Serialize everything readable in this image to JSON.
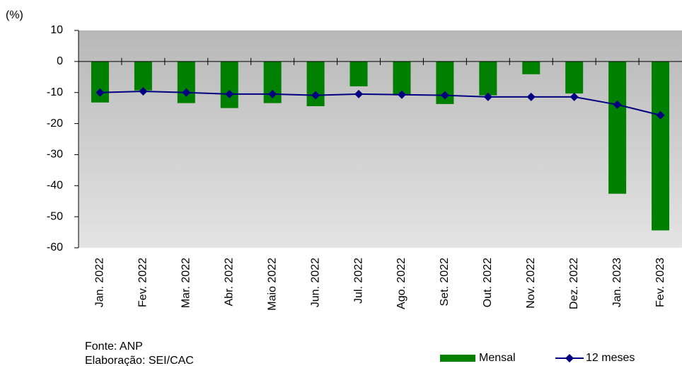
{
  "chart_data": {
    "type": "bar-line",
    "y_unit": "(%)",
    "categories": [
      "Jan. 2022",
      "Fev. 2022",
      "Mar. 2022",
      "Abr. 2022",
      "Maio 2022",
      "Jun. 2022",
      "Jul. 2022",
      "Ago. 2022",
      "Set. 2022",
      "Out. 2022",
      "Nov. 2022",
      "Dez. 2022",
      "Jan. 2023",
      "Fev. 2023"
    ],
    "series": [
      {
        "name": "Mensal",
        "type": "bar",
        "color": "#008000",
        "values": [
          -13.2,
          -9.3,
          -13.4,
          -15.0,
          -13.4,
          -14.4,
          -8.0,
          -10.9,
          -13.7,
          -10.9,
          -4.1,
          -10.3,
          -42.6,
          -54.4
        ]
      },
      {
        "name": "12 meses",
        "type": "line",
        "color": "#000080",
        "values": [
          -10.0,
          -9.6,
          -10.0,
          -10.5,
          -10.5,
          -10.9,
          -10.5,
          -10.7,
          -10.9,
          -11.4,
          -11.4,
          -11.4,
          -13.9,
          -17.3
        ]
      }
    ],
    "ylim": [
      -60,
      10
    ],
    "yticks": [
      -60,
      -50,
      -40,
      -30,
      -20,
      -10,
      0,
      10
    ],
    "source": "Fonte: ANP",
    "credit": "Elaboração: SEI/CAC"
  }
}
